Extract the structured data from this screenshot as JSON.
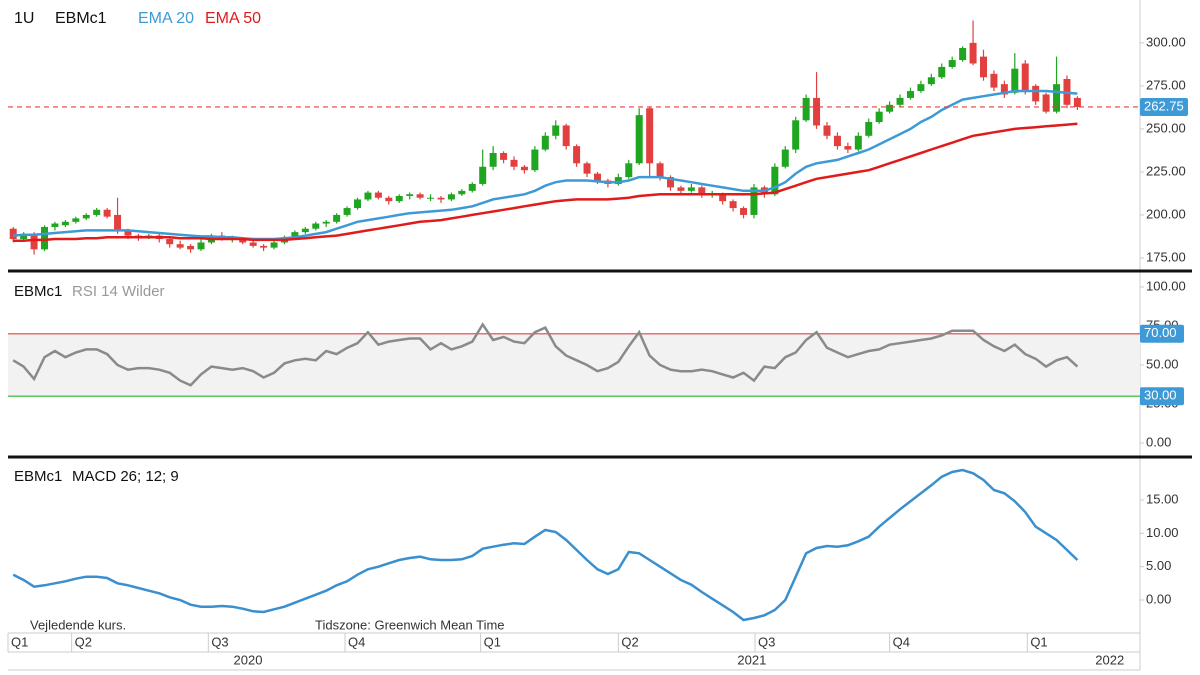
{
  "header": {
    "interval": "1U"
  },
  "chart_data": [
    {
      "type": "candlestick",
      "instrument": "EBMc1",
      "up_color": "#1fa51f",
      "down_color": "#e2403f",
      "last_price_color": "#e2403f",
      "label_box_color": "#3d9ad6",
      "open": [
        192,
        186,
        189,
        180,
        193,
        194,
        196,
        198,
        200,
        203,
        200,
        191,
        188,
        187,
        188,
        186,
        183,
        182,
        180,
        184,
        188,
        186,
        186,
        184,
        182,
        181,
        184,
        187,
        190,
        192,
        195,
        196,
        200,
        204,
        209,
        213,
        210,
        208,
        211,
        212,
        210,
        210,
        209,
        212,
        214,
        218,
        228,
        236,
        232,
        228,
        226,
        238,
        246,
        252,
        240,
        230,
        224,
        220,
        218,
        222,
        230,
        262,
        230,
        222,
        216,
        214,
        216,
        212,
        212,
        208,
        204,
        200,
        216,
        212,
        228,
        238,
        255,
        268,
        252,
        246,
        240,
        238,
        246,
        254,
        260,
        264,
        268,
        272,
        276,
        280,
        286,
        290,
        300,
        292,
        282,
        276,
        271,
        288,
        275,
        270,
        260,
        279,
        268
      ],
      "high": [
        193,
        190,
        190,
        194,
        196,
        197,
        199,
        201,
        204,
        204,
        210,
        192,
        189,
        189,
        189,
        187,
        185,
        183,
        186,
        189,
        190,
        188,
        187,
        186,
        183,
        185,
        188,
        191,
        193,
        196,
        197,
        201,
        205,
        210,
        214,
        214,
        211,
        212,
        213,
        213,
        212,
        211,
        213,
        215,
        219,
        238,
        240,
        237,
        234,
        229,
        240,
        248,
        255,
        253,
        241,
        231,
        225,
        221,
        224,
        232,
        262,
        263,
        231,
        223,
        217,
        218,
        217,
        214,
        213,
        209,
        205,
        218,
        217,
        230,
        240,
        257,
        270,
        283,
        254,
        248,
        242,
        248,
        256,
        262,
        266,
        270,
        274,
        278,
        282,
        288,
        292,
        298,
        313,
        296,
        284,
        278,
        294,
        290,
        276,
        271,
        292,
        281,
        269
      ],
      "low": [
        184,
        185,
        177,
        179,
        191,
        193,
        195,
        197,
        199,
        198,
        189,
        186,
        185,
        186,
        184,
        181,
        180,
        178,
        179,
        183,
        185,
        184,
        183,
        181,
        179,
        180,
        183,
        186,
        189,
        191,
        193,
        195,
        199,
        203,
        208,
        209,
        206,
        207,
        209,
        209,
        208,
        207,
        208,
        211,
        213,
        217,
        226,
        230,
        226,
        224,
        225,
        237,
        244,
        238,
        228,
        222,
        218,
        216,
        217,
        221,
        229,
        222,
        220,
        214,
        212,
        213,
        210,
        210,
        206,
        202,
        198,
        198,
        210,
        211,
        227,
        236,
        254,
        250,
        244,
        238,
        236,
        237,
        245,
        253,
        259,
        263,
        267,
        271,
        275,
        279,
        285,
        289,
        287,
        278,
        272,
        268,
        270,
        270,
        264,
        259,
        259,
        262,
        261
      ],
      "close": [
        186,
        189,
        180,
        193,
        195,
        196,
        198,
        200,
        203,
        199,
        191,
        188,
        187,
        188,
        186,
        183,
        181,
        180,
        184,
        188,
        186,
        186,
        184,
        182,
        181,
        184,
        187,
        190,
        192,
        195,
        196,
        200,
        204,
        209,
        213,
        210,
        208,
        211,
        212,
        210,
        210,
        209,
        212,
        214,
        218,
        228,
        236,
        232,
        228,
        226,
        238,
        246,
        252,
        240,
        230,
        224,
        220,
        218,
        222,
        230,
        258,
        230,
        222,
        216,
        214,
        216,
        212,
        212,
        208,
        204,
        200,
        216,
        212,
        228,
        238,
        255,
        268,
        252,
        246,
        240,
        238,
        246,
        254,
        260,
        264,
        268,
        272,
        276,
        280,
        286,
        290,
        297,
        288,
        280,
        274,
        270,
        285,
        272,
        266,
        260,
        276,
        264,
        262.75
      ],
      "series": [
        {
          "name": "EMA 20",
          "color": "#3d9ad6",
          "values": [
            188,
            188.5,
            188.5,
            189,
            189.5,
            190,
            190.5,
            191,
            191,
            191,
            191,
            191,
            190.5,
            190,
            189.5,
            189,
            188.5,
            188,
            187.5,
            187.5,
            187,
            187,
            186.5,
            186,
            186,
            186,
            186.5,
            187,
            188,
            189,
            190,
            192,
            194,
            196,
            197,
            198,
            199,
            200,
            201,
            201.5,
            202,
            202.5,
            203,
            204,
            205,
            207,
            209,
            210,
            211,
            212,
            214,
            217,
            219,
            220,
            220,
            220,
            219.5,
            219,
            219,
            220,
            222,
            222,
            222,
            221,
            220,
            219,
            218,
            217,
            216,
            215,
            214,
            214,
            214,
            216,
            219,
            224,
            228,
            230,
            231,
            232,
            234,
            236,
            238,
            241,
            244,
            247,
            250,
            254,
            257,
            261,
            264,
            267,
            268,
            269,
            270,
            271,
            272,
            272,
            272,
            272,
            271.5,
            271,
            270.5
          ]
        },
        {
          "name": "EMA 50",
          "color": "#e01b1b",
          "values": [
            185,
            185,
            185.5,
            185.5,
            186,
            186,
            186,
            186.5,
            186.5,
            187,
            187,
            187,
            187,
            187,
            187,
            187,
            186.5,
            186.5,
            186.5,
            186,
            186,
            186,
            186,
            185.5,
            185.5,
            185.5,
            185.5,
            186,
            186.5,
            187,
            187.5,
            188,
            189,
            190,
            191,
            192,
            193,
            194,
            195,
            196,
            196.5,
            197,
            198,
            199,
            200,
            201,
            202,
            203,
            204,
            205,
            206,
            207,
            208,
            208.5,
            209,
            209,
            209,
            209,
            209.5,
            210,
            211,
            211.5,
            212,
            212,
            212,
            212,
            212,
            212,
            212,
            212,
            212,
            212,
            212.5,
            213,
            215,
            217,
            219,
            221,
            222,
            223,
            224,
            225,
            226,
            228,
            230,
            232,
            234,
            236,
            238,
            240,
            242,
            244,
            246,
            247,
            248,
            249,
            250,
            250.5,
            251,
            251.5,
            252,
            252.5,
            253
          ]
        }
      ],
      "ylim": [
        168,
        322
      ],
      "yticks": [
        {
          "value": 175,
          "label": "175.00"
        },
        {
          "value": 200,
          "label": "200.00"
        },
        {
          "value": 225,
          "label": "225.00"
        },
        {
          "value": 250,
          "label": "250.00"
        },
        {
          "value": 275,
          "label": "275.00"
        },
        {
          "value": 300,
          "label": "300.00"
        }
      ]
    },
    {
      "type": "line",
      "instrument": "EBMc1",
      "title": "RSI 14 Wilder",
      "color": "#8a8a8a",
      "band_color": "#f2f2f2",
      "label_box_color": "#3d9ad6",
      "values": [
        53,
        49,
        41,
        55,
        59,
        55,
        58,
        60,
        60,
        57,
        50,
        47,
        48,
        48,
        47,
        45,
        40,
        37,
        44,
        49,
        48,
        47,
        48,
        46,
        42,
        45,
        51,
        53,
        54,
        53,
        59,
        57,
        61,
        64,
        71,
        63,
        65,
        66,
        67,
        67,
        60,
        64,
        60,
        62,
        65,
        76,
        66,
        68,
        65,
        64,
        71,
        74,
        62,
        56,
        53,
        50,
        46,
        48,
        52,
        62,
        71,
        56,
        50,
        47,
        46,
        46,
        47,
        46,
        44,
        42,
        45,
        40,
        49,
        48,
        55,
        58,
        66,
        71,
        61,
        58,
        55,
        57,
        59,
        60,
        63,
        64,
        65,
        66,
        67,
        69,
        72,
        72,
        72,
        66,
        62,
        59,
        63,
        57,
        54,
        49,
        53,
        55,
        49
      ],
      "levels": [
        {
          "value": 70,
          "label": "70.00",
          "color": "#e2403f"
        },
        {
          "value": 30,
          "label": "30.00",
          "color": "#2bb52b"
        }
      ],
      "ylim": [
        -7.7,
        107.7
      ],
      "yticks": [
        {
          "value": 0,
          "label": "0.00"
        },
        {
          "value": 25,
          "label": "25.00"
        },
        {
          "value": 50,
          "label": "50.00"
        },
        {
          "value": 75,
          "label": "75.00"
        },
        {
          "value": 100,
          "label": "100.00"
        }
      ]
    },
    {
      "type": "line",
      "instrument": "EBMc1",
      "title": "MACD 26; 12; 9",
      "color": "#3a8fcf",
      "values": [
        3.8,
        3,
        2,
        2.2,
        2.5,
        2.8,
        3.2,
        3.5,
        3.5,
        3.3,
        2.5,
        2.2,
        1.8,
        1.4,
        1,
        0.4,
        0,
        -0.7,
        -1,
        -1,
        -0.9,
        -1,
        -1.3,
        -1.7,
        -1.8,
        -1.4,
        -1,
        -0.4,
        0.2,
        0.8,
        1.4,
        2.2,
        2.8,
        3.8,
        4.6,
        5,
        5.5,
        6,
        6.3,
        6.5,
        6.1,
        6,
        6,
        6.1,
        6.6,
        7.7,
        8,
        8.3,
        8.5,
        8.4,
        9.5,
        10.5,
        10.2,
        9,
        7.5,
        6,
        4.6,
        3.9,
        4.6,
        7.2,
        7,
        6,
        5,
        4,
        3,
        2.3,
        1.2,
        0.2,
        -0.8,
        -1.8,
        -3,
        -2.7,
        -2.3,
        -1.5,
        0,
        3.5,
        7,
        7.8,
        8.1,
        8,
        8.2,
        8.8,
        9.5,
        11,
        12.3,
        13.6,
        14.8,
        16,
        17.2,
        18.5,
        19.2,
        19.5,
        19,
        18,
        16.5,
        16,
        14.8,
        13.2,
        11,
        10,
        9,
        7.5,
        6
      ],
      "ylim": [
        -4.8,
        21
      ],
      "yticks": [
        {
          "value": 0,
          "label": "0.00"
        },
        {
          "value": 5,
          "label": "5.00"
        },
        {
          "value": 10,
          "label": "10.00"
        },
        {
          "value": 15,
          "label": "15.00"
        }
      ]
    }
  ],
  "x_axis": {
    "xlim": [
      -0.5,
      108
    ],
    "ticks": [
      {
        "value": -0.5,
        "label": "Q1"
      },
      {
        "value": 5.6,
        "label": "Q2"
      },
      {
        "value": 18.7,
        "label": "Q3"
      },
      {
        "value": 31.8,
        "label": "Q4"
      },
      {
        "value": 44.8,
        "label": "Q1"
      },
      {
        "value": 58,
        "label": "Q2"
      },
      {
        "value": 71.1,
        "label": "Q3"
      },
      {
        "value": 84,
        "label": "Q4"
      },
      {
        "value": 97.2,
        "label": "Q1"
      }
    ],
    "years": [
      {
        "value": 22.5,
        "label": "2020"
      },
      {
        "value": 70.8,
        "label": "2021"
      },
      {
        "value": 105.1,
        "label": "2022"
      }
    ]
  },
  "footer": {
    "note": "Vejledende kurs.",
    "timezone": "Tidszone: Greenwich Mean Time"
  }
}
